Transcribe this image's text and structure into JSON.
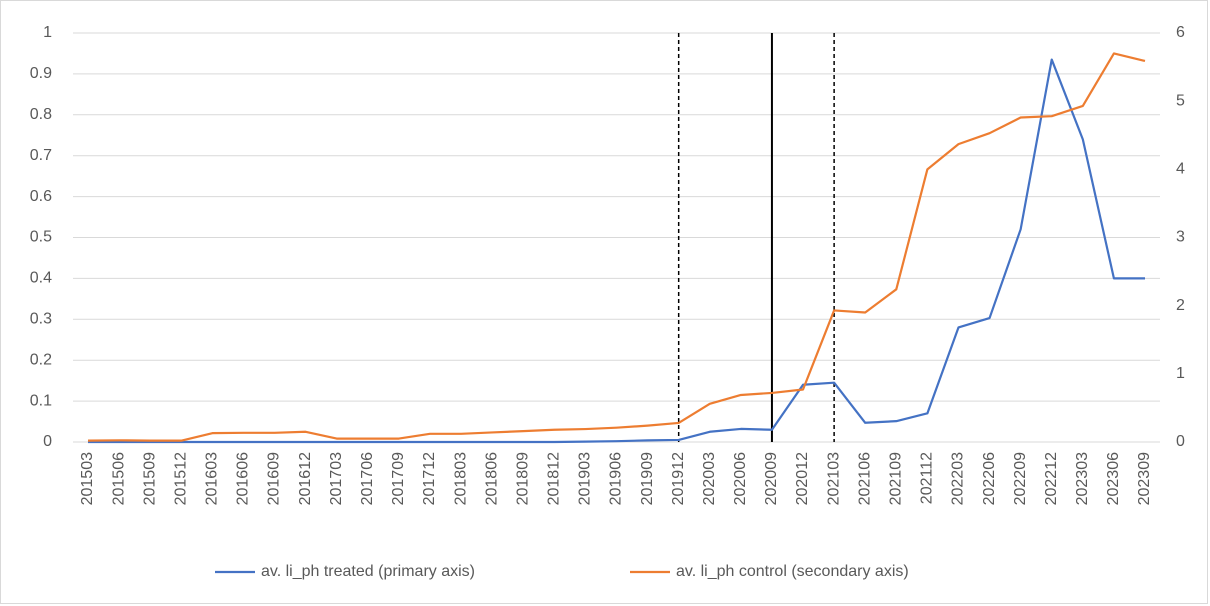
{
  "chart_data": {
    "type": "line",
    "categories": [
      "201503",
      "201506",
      "201509",
      "201512",
      "201603",
      "201606",
      "201609",
      "201612",
      "201703",
      "201706",
      "201709",
      "201712",
      "201803",
      "201806",
      "201809",
      "201812",
      "201903",
      "201906",
      "201909",
      "201912",
      "202003",
      "202006",
      "202009",
      "202012",
      "202103",
      "202106",
      "202109",
      "202112",
      "202203",
      "202206",
      "202209",
      "202212",
      "202303",
      "202306",
      "202309"
    ],
    "series": [
      {
        "name": "av. li_ph treated (primary axis)",
        "color": "#4472c4",
        "axis": "y",
        "values": [
          0,
          0,
          0,
          0,
          0,
          0,
          0,
          0,
          0,
          0,
          0,
          0,
          0,
          0,
          0,
          0,
          0.001,
          0.002,
          0.004,
          0.005,
          0.025,
          0.032,
          0.03,
          0.14,
          0.145,
          0.047,
          0.051,
          0.07,
          0.28,
          0.303,
          0.52,
          0.935,
          0.74,
          0.4,
          0.4
        ]
      },
      {
        "name": "av. li_ph control (secondary axis)",
        "color": "#ed7d31",
        "axis": "y2",
        "values": [
          0.02,
          0.025,
          0.02,
          0.02,
          0.13,
          0.135,
          0.135,
          0.15,
          0.05,
          0.05,
          0.05,
          0.12,
          0.12,
          0.14,
          0.16,
          0.18,
          0.19,
          0.21,
          0.24,
          0.28,
          0.56,
          0.69,
          0.72,
          0.77,
          1.93,
          1.9,
          2.24,
          4.0,
          4.37,
          4.53,
          4.76,
          4.78,
          4.93,
          5.7,
          5.59
        ]
      }
    ],
    "ylim": [
      0,
      1
    ],
    "yticks": [
      0,
      0.1,
      0.2,
      0.3,
      0.4,
      0.5,
      0.6,
      0.7,
      0.8,
      0.9,
      1
    ],
    "y2lim": [
      0,
      6
    ],
    "y2ticks": [
      0,
      1,
      2,
      3,
      4,
      5,
      6
    ],
    "grid": true,
    "legend": "bottom",
    "reference_lines": [
      {
        "x": "201912",
        "style": "dashed"
      },
      {
        "x": "202009",
        "style": "solid"
      },
      {
        "x": "202103",
        "style": "dashed"
      }
    ]
  }
}
